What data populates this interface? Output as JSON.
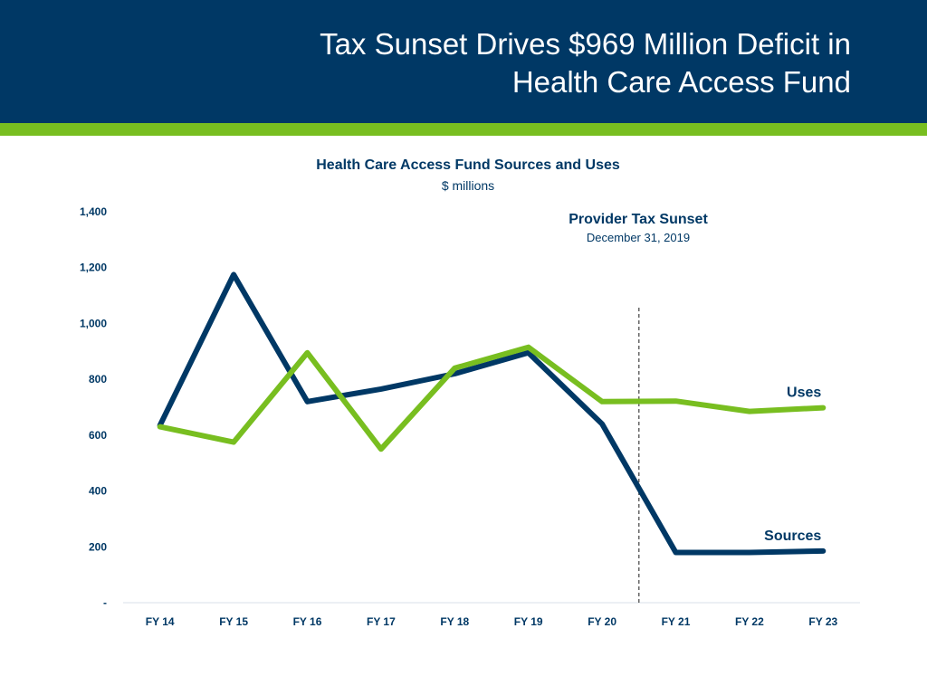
{
  "header": {
    "title_line1": "Tax Sunset Drives $969 Million Deficit in",
    "title_line2": "Health Care Access Fund"
  },
  "colors": {
    "header_bg": "#003865",
    "accent": "#78be20",
    "sources": "#003865",
    "uses": "#78be20"
  },
  "chart_data": {
    "type": "line",
    "title": "Health Care Access Fund Sources and Uses",
    "subtitle": "$ millions",
    "categories": [
      "FY 14",
      "FY 15",
      "FY 16",
      "FY 17",
      "FY 18",
      "FY 19",
      "FY 20",
      "FY 21",
      "FY 22",
      "FY 23"
    ],
    "series": [
      {
        "name": "Sources",
        "values": [
          635,
          1175,
          720,
          765,
          820,
          895,
          640,
          180,
          180,
          185
        ]
      },
      {
        "name": "Uses",
        "values": [
          630,
          575,
          895,
          550,
          840,
          915,
          720,
          722,
          685,
          698
        ]
      }
    ],
    "ylim": [
      0,
      1400
    ],
    "yticks": [
      {
        "value": 0,
        "label": "-"
      },
      {
        "value": 200,
        "label": "200"
      },
      {
        "value": 400,
        "label": "400"
      },
      {
        "value": 600,
        "label": "600"
      },
      {
        "value": 800,
        "label": "800"
      },
      {
        "value": 1000,
        "label": "1,000"
      },
      {
        "value": 1200,
        "label": "1,200"
      },
      {
        "value": 1400,
        "label": "1,400"
      }
    ],
    "annotation": {
      "title": "Provider Tax Sunset",
      "subtitle": "December 31, 2019",
      "between": [
        "FY 20",
        "FY 21"
      ]
    }
  }
}
